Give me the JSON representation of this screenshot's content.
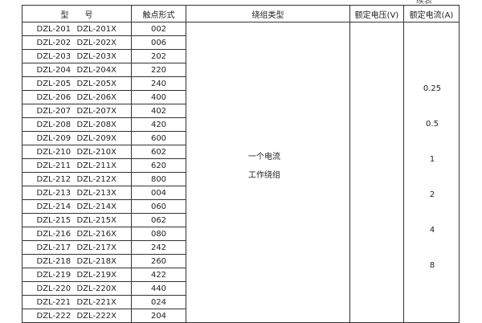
{
  "continued_label": "续表",
  "headers": {
    "model": "型　　号",
    "contact": "触点形式",
    "winding": "绕组类型",
    "voltage": "额定电压(V)",
    "current": "额定电流(A)"
  },
  "rows": [
    [
      "DZL-201",
      "DZL-201X",
      "002"
    ],
    [
      "DZL-202",
      "DZL-202X",
      "006"
    ],
    [
      "DZL-203",
      "DZL-203X",
      "202"
    ],
    [
      "DZL-204",
      "DZL-204X",
      "220"
    ],
    [
      "DZL-205",
      "DZL-205X",
      "240"
    ],
    [
      "DZL-206",
      "DZL-206X",
      "400"
    ],
    [
      "DZL-207",
      "DZL-207X",
      "402"
    ],
    [
      "DZL-208",
      "DZL-208X",
      "420"
    ],
    [
      "DZL-209",
      "DZL-209X",
      "600"
    ],
    [
      "DZL-210",
      "DZL-210X",
      "602"
    ],
    [
      "DZL-211",
      "DZL-211X",
      "620"
    ],
    [
      "DZL-212",
      "DZL-212X",
      "800"
    ],
    [
      "DZL-213",
      "DZL-213X",
      "004"
    ],
    [
      "DZL-214",
      "DZL-214X",
      "060"
    ],
    [
      "DZL-215",
      "DZL-215X",
      "062"
    ],
    [
      "DZL-216",
      "DZL-216X",
      "080"
    ],
    [
      "DZL-217",
      "DZL-217X",
      "242"
    ],
    [
      "DZL-218",
      "DZL-218X",
      "260"
    ],
    [
      "DZL-219",
      "DZL-219X",
      "422"
    ],
    [
      "DZL-220",
      "DZL-220X",
      "440"
    ],
    [
      "DZL-221",
      "DZL-221X",
      "024"
    ],
    [
      "DZL-222",
      "DZL-222X",
      "204"
    ]
  ],
  "winding": {
    "line1": "一个电流",
    "line2": "工作绕组"
  },
  "currents": [
    "0.25",
    "0.5",
    "1",
    "2",
    "4",
    "8"
  ]
}
